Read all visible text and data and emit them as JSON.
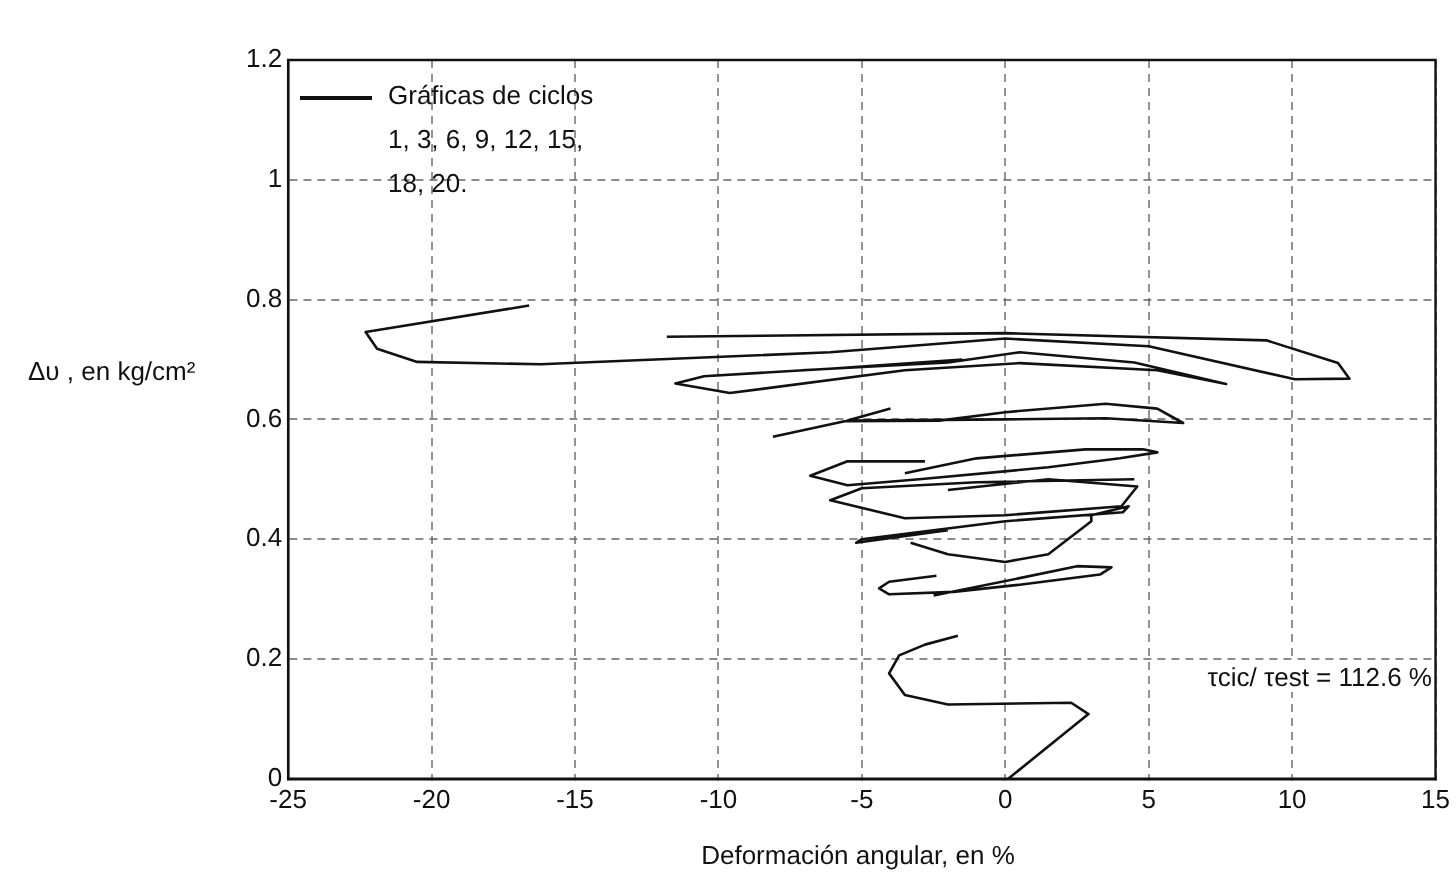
{
  "chart_data": {
    "type": "line",
    "xlabel": "Deformación angular, en %",
    "ylabel": "Δυ , en kg/cm²",
    "xlim": [
      -25,
      15
    ],
    "xticks": [
      -25,
      -20,
      -15,
      -10,
      -5,
      0,
      5,
      10,
      15
    ],
    "ylim": [
      0,
      1.2
    ],
    "yticks": [
      0,
      0.2,
      0.4,
      0.6,
      0.8,
      1,
      1.2
    ],
    "grid": true,
    "legend": "top left",
    "annotations": [
      "τcic/ τest = 112.6 %"
    ],
    "series": [
      {
        "name": "Gráficas de ciclos 1, 3, 6, 9, 12, 15, 18, 20.",
        "color": "#111111",
        "x": [
          0.1,
          2.9,
          2.3,
          -2.0,
          -3.5,
          -4.05,
          -3.7,
          -2.8,
          -1.65,
          null,
          -2.5,
          0.5,
          2.5,
          3.7,
          3.3,
          0.5,
          -1.8,
          -4.05,
          -4.4,
          -4.05,
          -2.4,
          null,
          -2.0,
          -5.2,
          -5.0,
          0,
          4.1,
          4.3,
          3.0,
          3.0,
          1.5,
          0,
          -2.0,
          -3.3,
          null,
          -2.0,
          1.5,
          4.6,
          4.05,
          0,
          -3.5,
          -6.1,
          -5.0,
          -1.0,
          4.5,
          null,
          -2.8,
          -5.5,
          -6.8,
          -5.5,
          -3.0,
          1.5,
          4.0,
          5.3,
          4.8,
          2.8,
          -1.0,
          -3.5,
          null,
          -8.1,
          -5.6,
          -2.3,
          0,
          3.5,
          5.3,
          6.2,
          3.5,
          0,
          -5.5,
          -4.0,
          null,
          -7.1,
          -2,
          0.5,
          4.5,
          7.7,
          5.3,
          0.5,
          -3.5,
          -9.6,
          -11.5,
          -10.5,
          -6,
          -1.5,
          null,
          -16.6,
          -22.3,
          -21.9,
          -20.5,
          -16.2,
          -6.1,
          0,
          5,
          10.1,
          12.0,
          11.6,
          9.1,
          0,
          -11.8
        ],
        "values": [
          0,
          0.108,
          0.127,
          0.124,
          0.14,
          0.176,
          0.206,
          0.224,
          0.239,
          null,
          0.306,
          0.335,
          0.355,
          0.353,
          0.341,
          0.324,
          0.312,
          0.308,
          0.318,
          0.329,
          0.339,
          null,
          0.415,
          0.394,
          0.4,
          0.43,
          0.445,
          0.455,
          0.44,
          0.43,
          0.375,
          0.362,
          0.375,
          0.394,
          null,
          0.482,
          0.5,
          0.488,
          0.455,
          0.44,
          0.435,
          0.465,
          0.485,
          0.495,
          0.5,
          null,
          0.53,
          0.53,
          0.506,
          0.49,
          0.5,
          0.52,
          0.535,
          0.545,
          0.55,
          0.55,
          0.535,
          0.51,
          null,
          0.571,
          0.597,
          0.598,
          0.612,
          0.626,
          0.618,
          0.594,
          0.602,
          0.6,
          0.598,
          0.618,
          null,
          0.682,
          0.695,
          0.712,
          0.695,
          0.659,
          0.682,
          0.694,
          0.682,
          0.644,
          0.66,
          0.672,
          0.685,
          0.7,
          null,
          0.79,
          0.746,
          0.718,
          0.696,
          0.692,
          0.712,
          0.735,
          0.722,
          0.667,
          0.668,
          0.694,
          0.732,
          0.744,
          0.738
        ]
      }
    ]
  }
}
